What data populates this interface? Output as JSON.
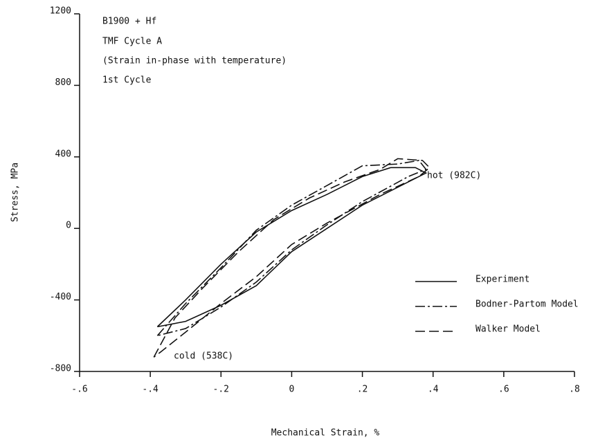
{
  "chart_data": {
    "type": "line",
    "annotations": [
      "B1900 + Hf",
      "TMF Cycle A",
      "(Strain in-phase with temperature)",
      "1st Cycle",
      "hot  (982C)",
      "cold (538C)"
    ],
    "xlabel": "Mechanical Strain, %",
    "ylabel": "Stress, MPa",
    "xlim": [
      -0.6,
      0.8
    ],
    "xticks": [
      {
        "value": -0.6,
        "label": "-.6"
      },
      {
        "value": -0.4,
        "label": "-.4"
      },
      {
        "value": -0.2,
        "label": "-.2"
      },
      0,
      {
        "value": 0.2,
        "label": ".2"
      },
      {
        "value": 0.4,
        "label": ".4"
      },
      {
        "value": 0.6,
        "label": ".6"
      },
      {
        "value": 0.8,
        "label": ".8"
      }
    ],
    "ylim": [
      -800,
      1200
    ],
    "yticks": [
      -800,
      -400,
      0,
      400,
      800,
      1200
    ],
    "legend": "lower right",
    "series": [
      {
        "name": "Experiment",
        "color": "#111111",
        "dash": "solid",
        "x": [
          -0.38,
          -0.3,
          -0.2,
          -0.1,
          0,
          0.1,
          0.2,
          0.28,
          0.35,
          0.38,
          0.35,
          0.2,
          0.1,
          0,
          -0.1,
          -0.2,
          -0.3,
          -0.38
        ],
        "values": [
          -550,
          -400,
          -200,
          -20,
          100,
          190,
          290,
          340,
          340,
          310,
          280,
          130,
          0,
          -130,
          -320,
          -430,
          -520,
          -550
        ]
      },
      {
        "name": "Bodner-Partom Model",
        "color": "#111111",
        "dash": "dashdot",
        "x": [
          -0.38,
          -0.3,
          -0.2,
          -0.1,
          0,
          0.1,
          0.2,
          0.3,
          0.36,
          0.38,
          0.33,
          0.2,
          0.1,
          0,
          -0.1,
          -0.2,
          -0.3,
          -0.38
        ],
        "values": [
          -600,
          -420,
          -220,
          -10,
          130,
          240,
          350,
          360,
          380,
          330,
          290,
          150,
          20,
          -120,
          -300,
          -440,
          -560,
          -600
        ]
      },
      {
        "name": "Walker Model",
        "color": "#111111",
        "dash": "dashed",
        "x": [
          -0.39,
          -0.33,
          -0.25,
          -0.15,
          -0.05,
          0.05,
          0.15,
          0.25,
          0.3,
          0.37,
          0.39,
          0.36,
          0.25,
          0.1,
          0,
          -0.1,
          -0.2,
          -0.3,
          -0.37,
          -0.39
        ],
        "values": [
          -720,
          -500,
          -330,
          -130,
          50,
          170,
          260,
          330,
          390,
          380,
          340,
          290,
          190,
          30,
          -90,
          -270,
          -420,
          -580,
          -690,
          -720
        ]
      }
    ]
  }
}
